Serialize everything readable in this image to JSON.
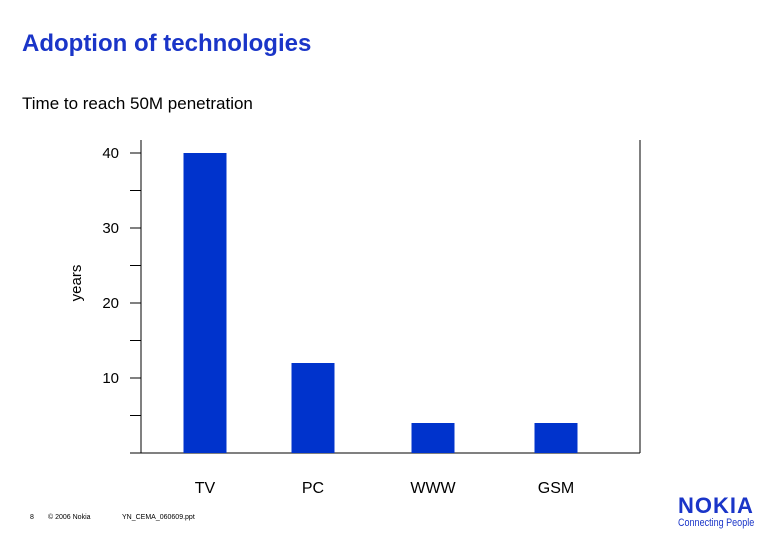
{
  "slide": {
    "title": "Adoption of technologies",
    "subtitle": "Time to reach 50M penetration"
  },
  "chart_data": {
    "type": "bar",
    "categories": [
      "TV",
      "PC",
      "WWW",
      "GSM"
    ],
    "values": [
      40,
      12,
      4,
      4
    ],
    "ylabel": "years",
    "ylim": [
      0,
      40
    ],
    "yticks": [
      10,
      20,
      30,
      40
    ],
    "grid": false,
    "bar_color": "#0033cc"
  },
  "footer": {
    "page_number": "8",
    "copyright": "© 2006 Nokia",
    "filename": "YN_CEMA_060609.ppt"
  },
  "logo": {
    "brand": "NOKIA",
    "tagline": "Connecting People"
  }
}
